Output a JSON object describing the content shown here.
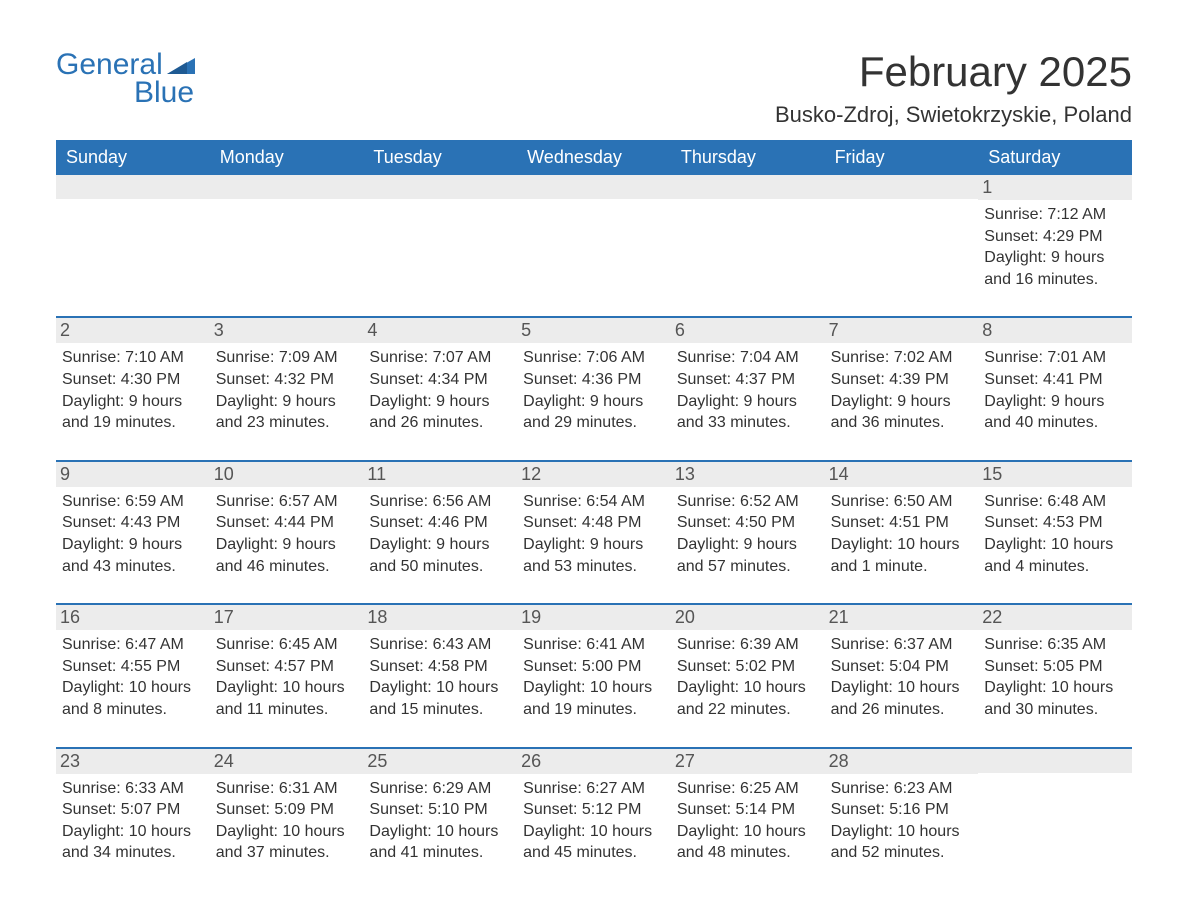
{
  "logo": {
    "line1": "General",
    "line2": "Blue",
    "brand_color": "#2a72b5"
  },
  "title": "February 2025",
  "location": "Busko-Zdroj, Swietokrzyskie, Poland",
  "styling": {
    "header_bg": "#2a72b5",
    "header_text_color": "#ffffff",
    "daynum_bg": "#ececec",
    "row_divider_color": "#2a72b5",
    "body_text_color": "#333333",
    "font_family": "Arial",
    "title_fontsize_pt": 32,
    "location_fontsize_pt": 16,
    "weekday_fontsize_pt": 14,
    "cell_fontsize_pt": 12
  },
  "weekdays": [
    "Sunday",
    "Monday",
    "Tuesday",
    "Wednesday",
    "Thursday",
    "Friday",
    "Saturday"
  ],
  "weeks": [
    [
      null,
      null,
      null,
      null,
      null,
      null,
      {
        "n": "1",
        "sr": "Sunrise: 7:12 AM",
        "ss": "Sunset: 4:29 PM",
        "d1": "Daylight: 9 hours",
        "d2": "and 16 minutes."
      }
    ],
    [
      {
        "n": "2",
        "sr": "Sunrise: 7:10 AM",
        "ss": "Sunset: 4:30 PM",
        "d1": "Daylight: 9 hours",
        "d2": "and 19 minutes."
      },
      {
        "n": "3",
        "sr": "Sunrise: 7:09 AM",
        "ss": "Sunset: 4:32 PM",
        "d1": "Daylight: 9 hours",
        "d2": "and 23 minutes."
      },
      {
        "n": "4",
        "sr": "Sunrise: 7:07 AM",
        "ss": "Sunset: 4:34 PM",
        "d1": "Daylight: 9 hours",
        "d2": "and 26 minutes."
      },
      {
        "n": "5",
        "sr": "Sunrise: 7:06 AM",
        "ss": "Sunset: 4:36 PM",
        "d1": "Daylight: 9 hours",
        "d2": "and 29 minutes."
      },
      {
        "n": "6",
        "sr": "Sunrise: 7:04 AM",
        "ss": "Sunset: 4:37 PM",
        "d1": "Daylight: 9 hours",
        "d2": "and 33 minutes."
      },
      {
        "n": "7",
        "sr": "Sunrise: 7:02 AM",
        "ss": "Sunset: 4:39 PM",
        "d1": "Daylight: 9 hours",
        "d2": "and 36 minutes."
      },
      {
        "n": "8",
        "sr": "Sunrise: 7:01 AM",
        "ss": "Sunset: 4:41 PM",
        "d1": "Daylight: 9 hours",
        "d2": "and 40 minutes."
      }
    ],
    [
      {
        "n": "9",
        "sr": "Sunrise: 6:59 AM",
        "ss": "Sunset: 4:43 PM",
        "d1": "Daylight: 9 hours",
        "d2": "and 43 minutes."
      },
      {
        "n": "10",
        "sr": "Sunrise: 6:57 AM",
        "ss": "Sunset: 4:44 PM",
        "d1": "Daylight: 9 hours",
        "d2": "and 46 minutes."
      },
      {
        "n": "11",
        "sr": "Sunrise: 6:56 AM",
        "ss": "Sunset: 4:46 PM",
        "d1": "Daylight: 9 hours",
        "d2": "and 50 minutes."
      },
      {
        "n": "12",
        "sr": "Sunrise: 6:54 AM",
        "ss": "Sunset: 4:48 PM",
        "d1": "Daylight: 9 hours",
        "d2": "and 53 minutes."
      },
      {
        "n": "13",
        "sr": "Sunrise: 6:52 AM",
        "ss": "Sunset: 4:50 PM",
        "d1": "Daylight: 9 hours",
        "d2": "and 57 minutes."
      },
      {
        "n": "14",
        "sr": "Sunrise: 6:50 AM",
        "ss": "Sunset: 4:51 PM",
        "d1": "Daylight: 10 hours",
        "d2": "and 1 minute."
      },
      {
        "n": "15",
        "sr": "Sunrise: 6:48 AM",
        "ss": "Sunset: 4:53 PM",
        "d1": "Daylight: 10 hours",
        "d2": "and 4 minutes."
      }
    ],
    [
      {
        "n": "16",
        "sr": "Sunrise: 6:47 AM",
        "ss": "Sunset: 4:55 PM",
        "d1": "Daylight: 10 hours",
        "d2": "and 8 minutes."
      },
      {
        "n": "17",
        "sr": "Sunrise: 6:45 AM",
        "ss": "Sunset: 4:57 PM",
        "d1": "Daylight: 10 hours",
        "d2": "and 11 minutes."
      },
      {
        "n": "18",
        "sr": "Sunrise: 6:43 AM",
        "ss": "Sunset: 4:58 PM",
        "d1": "Daylight: 10 hours",
        "d2": "and 15 minutes."
      },
      {
        "n": "19",
        "sr": "Sunrise: 6:41 AM",
        "ss": "Sunset: 5:00 PM",
        "d1": "Daylight: 10 hours",
        "d2": "and 19 minutes."
      },
      {
        "n": "20",
        "sr": "Sunrise: 6:39 AM",
        "ss": "Sunset: 5:02 PM",
        "d1": "Daylight: 10 hours",
        "d2": "and 22 minutes."
      },
      {
        "n": "21",
        "sr": "Sunrise: 6:37 AM",
        "ss": "Sunset: 5:04 PM",
        "d1": "Daylight: 10 hours",
        "d2": "and 26 minutes."
      },
      {
        "n": "22",
        "sr": "Sunrise: 6:35 AM",
        "ss": "Sunset: 5:05 PM",
        "d1": "Daylight: 10 hours",
        "d2": "and 30 minutes."
      }
    ],
    [
      {
        "n": "23",
        "sr": "Sunrise: 6:33 AM",
        "ss": "Sunset: 5:07 PM",
        "d1": "Daylight: 10 hours",
        "d2": "and 34 minutes."
      },
      {
        "n": "24",
        "sr": "Sunrise: 6:31 AM",
        "ss": "Sunset: 5:09 PM",
        "d1": "Daylight: 10 hours",
        "d2": "and 37 minutes."
      },
      {
        "n": "25",
        "sr": "Sunrise: 6:29 AM",
        "ss": "Sunset: 5:10 PM",
        "d1": "Daylight: 10 hours",
        "d2": "and 41 minutes."
      },
      {
        "n": "26",
        "sr": "Sunrise: 6:27 AM",
        "ss": "Sunset: 5:12 PM",
        "d1": "Daylight: 10 hours",
        "d2": "and 45 minutes."
      },
      {
        "n": "27",
        "sr": "Sunrise: 6:25 AM",
        "ss": "Sunset: 5:14 PM",
        "d1": "Daylight: 10 hours",
        "d2": "and 48 minutes."
      },
      {
        "n": "28",
        "sr": "Sunrise: 6:23 AM",
        "ss": "Sunset: 5:16 PM",
        "d1": "Daylight: 10 hours",
        "d2": "and 52 minutes."
      },
      null
    ]
  ]
}
